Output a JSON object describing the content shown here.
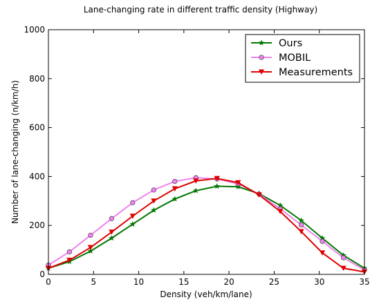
{
  "chart_data": {
    "type": "line",
    "title": "Lane-changing rate in different traffic density (Highway)",
    "xlabel": "Density (veh/km/lane)",
    "ylabel": "Number of lane-changing (n/km/h)",
    "xlim": [
      0,
      35
    ],
    "ylim": [
      0,
      1000
    ],
    "xticks": [
      "0",
      "5",
      "10",
      "15",
      "20",
      "25",
      "30",
      "35"
    ],
    "yticks": [
      "0",
      "200",
      "400",
      "600",
      "800",
      "1000"
    ],
    "grid": false,
    "legend_position": "top-right",
    "x": [
      0,
      2.33,
      4.67,
      7.0,
      9.33,
      11.67,
      14.0,
      16.33,
      18.67,
      21.0,
      23.33,
      25.67,
      28.0,
      30.33,
      32.67,
      35.0
    ],
    "series": [
      {
        "name": "Ours",
        "color": "#007700",
        "marker": "star",
        "values": [
          25,
          52,
          95,
          148,
          205,
          262,
          308,
          342,
          360,
          358,
          330,
          282,
          220,
          148,
          78,
          25
        ]
      },
      {
        "name": "MOBIL",
        "color": "#ee82ee",
        "marker": "circle",
        "values": [
          38,
          92,
          160,
          228,
          293,
          345,
          380,
          395,
          390,
          370,
          328,
          268,
          202,
          135,
          68,
          18
        ]
      },
      {
        "name": "Measurements",
        "color": "#dd0000",
        "marker": "triangle-down",
        "values": [
          25,
          58,
          110,
          173,
          238,
          300,
          350,
          382,
          392,
          375,
          325,
          257,
          175,
          88,
          25,
          10
        ]
      }
    ]
  }
}
